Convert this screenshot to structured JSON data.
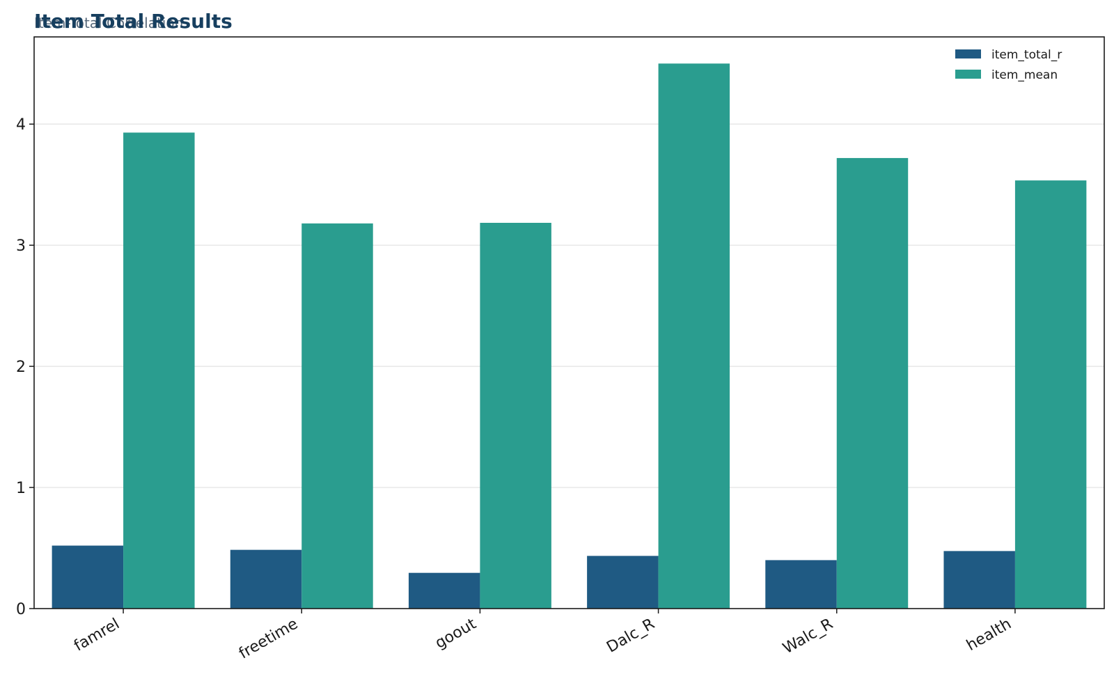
{
  "chart_data": {
    "type": "bar",
    "title": "Item Total Results",
    "subtitle": "Item-Total Correlation",
    "xlabel": "",
    "ylabel": "",
    "categories": [
      "famrel",
      "freetime",
      "goout",
      "Dalc_R",
      "Walc_R",
      "health"
    ],
    "series": [
      {
        "name": "item_total_r",
        "color": "#1f5a83",
        "values": [
          0.52,
          0.485,
          0.295,
          0.435,
          0.4,
          0.475
        ]
      },
      {
        "name": "item_mean",
        "color": "#2a9d8f",
        "values": [
          3.93,
          3.18,
          3.185,
          4.5,
          3.72,
          3.535
        ]
      }
    ],
    "ylim": [
      0,
      4.72
    ],
    "yticks": [
      0,
      1,
      2,
      3,
      4
    ],
    "grid": "horizontal",
    "legend": "top-right"
  }
}
